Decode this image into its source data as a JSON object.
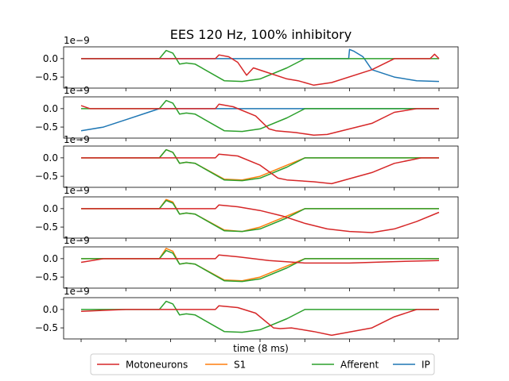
{
  "chart_data": {
    "type": "line",
    "title": "EES 120 Hz, 100% inhibitory",
    "xlabel": "time (8 ms)",
    "ylabel": "",
    "x_range": [
      0,
      8
    ],
    "ylim": [
      -0.8,
      0.32
    ],
    "y_offset_label": "1e−9",
    "y_ticks": [
      0.0,
      -0.5
    ],
    "y_tick_labels": [
      "0.0",
      "−0.5"
    ],
    "legend": {
      "placement": "bottom-center",
      "entries": [
        "Motoneurons",
        "S1",
        "Afferent",
        "IP"
      ]
    },
    "colors": {
      "Motoneurons": "#d62728",
      "S1": "#ff7f0e",
      "Afferent": "#2ca02c",
      "IP": "#1f77b4"
    },
    "panels": [
      {
        "series": [
          {
            "name": "IP",
            "x": [
              0,
              5.1,
              5.98,
              6.0,
              6.1,
              6.3,
              6.5,
              7.0,
              7.5,
              8.0
            ],
            "values": [
              0,
              0,
              0,
              0.25,
              0.2,
              0.05,
              -0.3,
              -0.5,
              -0.6,
              -0.62
            ]
          },
          {
            "name": "Afferent",
            "x": [
              0,
              1.75,
              1.9,
              2.05,
              2.2,
              2.35,
              2.55,
              3.2,
              3.6,
              4.0,
              4.6,
              5.0,
              8.0
            ],
            "values": [
              0,
              0,
              0.22,
              0.15,
              -0.15,
              -0.12,
              -0.15,
              -0.6,
              -0.62,
              -0.55,
              -0.25,
              0,
              0
            ]
          },
          {
            "name": "Motoneurons",
            "x": [
              0,
              3.0,
              3.08,
              3.3,
              3.5,
              3.7,
              3.85,
              4.1,
              4.6,
              4.85,
              5.2,
              5.6,
              6.5,
              7.0,
              7.5,
              7.8,
              7.9,
              8.0
            ],
            "values": [
              0,
              0,
              0.1,
              0.05,
              -0.1,
              -0.45,
              -0.25,
              -0.35,
              -0.55,
              -0.6,
              -0.72,
              -0.65,
              -0.3,
              0,
              0,
              0,
              0.12,
              0
            ]
          }
        ]
      },
      {
        "series": [
          {
            "name": "IP",
            "x": [
              0,
              0.5,
              1.0,
              1.5,
              1.75,
              3.0,
              8.0
            ],
            "values": [
              -0.6,
              -0.5,
              -0.3,
              -0.1,
              0,
              0,
              0
            ]
          },
          {
            "name": "Afferent",
            "x": [
              0,
              1.75,
              1.9,
              2.05,
              2.2,
              2.35,
              2.55,
              3.2,
              3.6,
              4.0,
              4.6,
              5.0,
              8.0
            ],
            "values": [
              0,
              0,
              0.22,
              0.15,
              -0.15,
              -0.12,
              -0.15,
              -0.6,
              -0.62,
              -0.55,
              -0.25,
              0,
              0
            ]
          },
          {
            "name": "Motoneurons",
            "x": [
              0,
              0.2,
              3.0,
              3.08,
              3.4,
              3.9,
              4.2,
              4.35,
              4.8,
              5.2,
              5.5,
              6.5,
              7.0,
              7.5,
              7.9,
              8.0
            ],
            "values": [
              0.08,
              0,
              0,
              0.12,
              0.05,
              -0.2,
              -0.55,
              -0.6,
              -0.65,
              -0.72,
              -0.7,
              -0.4,
              -0.1,
              0,
              0,
              0
            ]
          }
        ]
      },
      {
        "series": [
          {
            "name": "S1",
            "x": [
              0,
              1.75,
              1.9,
              2.05,
              2.2,
              2.35,
              2.55,
              3.2,
              3.6,
              4.0,
              4.6,
              5.0,
              8.0
            ],
            "values": [
              0,
              0,
              0.22,
              0.15,
              -0.15,
              -0.12,
              -0.15,
              -0.58,
              -0.6,
              -0.5,
              -0.2,
              0,
              0
            ]
          },
          {
            "name": "Afferent",
            "x": [
              0,
              1.75,
              1.9,
              2.05,
              2.2,
              2.35,
              2.55,
              3.2,
              3.6,
              4.0,
              4.6,
              5.0,
              8.0
            ],
            "values": [
              0,
              0,
              0.22,
              0.15,
              -0.15,
              -0.12,
              -0.15,
              -0.6,
              -0.62,
              -0.55,
              -0.25,
              0,
              0
            ]
          },
          {
            "name": "Motoneurons",
            "x": [
              0,
              3.0,
              3.08,
              3.5,
              4.0,
              4.4,
              4.6,
              5.2,
              5.6,
              6.5,
              7.0,
              7.6,
              8.0
            ],
            "values": [
              0,
              0,
              0.1,
              0.05,
              -0.2,
              -0.55,
              -0.6,
              -0.65,
              -0.7,
              -0.4,
              -0.15,
              0,
              0
            ]
          }
        ]
      },
      {
        "series": [
          {
            "name": "S1",
            "x": [
              0,
              1.75,
              1.9,
              2.05,
              2.2,
              2.35,
              2.55,
              3.2,
              3.6,
              4.0,
              4.6,
              5.0,
              8.0
            ],
            "values": [
              0,
              0,
              0.25,
              0.18,
              -0.15,
              -0.12,
              -0.15,
              -0.58,
              -0.62,
              -0.5,
              -0.2,
              0,
              0
            ]
          },
          {
            "name": "Afferent",
            "x": [
              0,
              1.75,
              1.9,
              2.05,
              2.2,
              2.35,
              2.55,
              3.2,
              3.6,
              4.0,
              4.6,
              5.0,
              8.0
            ],
            "values": [
              0,
              0,
              0.22,
              0.15,
              -0.15,
              -0.12,
              -0.15,
              -0.6,
              -0.62,
              -0.55,
              -0.25,
              0,
              0
            ]
          },
          {
            "name": "Motoneurons",
            "x": [
              0,
              3.0,
              3.08,
              3.5,
              4.0,
              4.5,
              5.0,
              5.5,
              6.0,
              6.5,
              7.0,
              7.5,
              8.0
            ],
            "values": [
              0,
              0,
              0.1,
              0.05,
              -0.05,
              -0.2,
              -0.4,
              -0.55,
              -0.62,
              -0.65,
              -0.55,
              -0.35,
              -0.1
            ]
          }
        ]
      },
      {
        "series": [
          {
            "name": "S1",
            "x": [
              0,
              1.75,
              1.9,
              2.05,
              2.2,
              2.35,
              2.55,
              3.2,
              3.6,
              4.0,
              4.6,
              5.0,
              8.0
            ],
            "values": [
              0,
              0,
              0.28,
              0.2,
              -0.15,
              -0.12,
              -0.15,
              -0.58,
              -0.6,
              -0.5,
              -0.2,
              0,
              0
            ]
          },
          {
            "name": "Afferent",
            "x": [
              0,
              1.75,
              1.9,
              2.05,
              2.2,
              2.35,
              2.55,
              3.2,
              3.6,
              4.0,
              4.6,
              5.0,
              8.0
            ],
            "values": [
              0,
              0,
              0.22,
              0.15,
              -0.15,
              -0.12,
              -0.15,
              -0.6,
              -0.62,
              -0.55,
              -0.25,
              0,
              0
            ]
          },
          {
            "name": "Motoneurons",
            "x": [
              0,
              0.5,
              1.75,
              3.0,
              3.08,
              3.5,
              4.2,
              5.0,
              6.0,
              7.0,
              8.0
            ],
            "values": [
              -0.1,
              0,
              0,
              0,
              0.1,
              0.05,
              -0.05,
              -0.12,
              -0.12,
              -0.08,
              -0.05
            ]
          }
        ]
      },
      {
        "series": [
          {
            "name": "Afferent",
            "x": [
              0,
              1.75,
              1.9,
              2.05,
              2.2,
              2.35,
              2.55,
              3.2,
              3.6,
              4.0,
              4.6,
              5.0,
              8.0
            ],
            "values": [
              0,
              0,
              0.22,
              0.15,
              -0.15,
              -0.12,
              -0.15,
              -0.6,
              -0.62,
              -0.55,
              -0.25,
              0,
              0
            ]
          },
          {
            "name": "Motoneurons",
            "x": [
              0,
              1.0,
              3.0,
              3.08,
              3.5,
              3.9,
              4.3,
              4.45,
              4.7,
              5.2,
              5.6,
              6.5,
              7.0,
              7.5,
              7.9,
              8.0
            ],
            "values": [
              -0.05,
              0,
              0,
              0.1,
              0.05,
              -0.1,
              -0.5,
              -0.52,
              -0.5,
              -0.6,
              -0.7,
              -0.5,
              -0.2,
              0,
              0,
              0
            ]
          }
        ]
      }
    ]
  }
}
